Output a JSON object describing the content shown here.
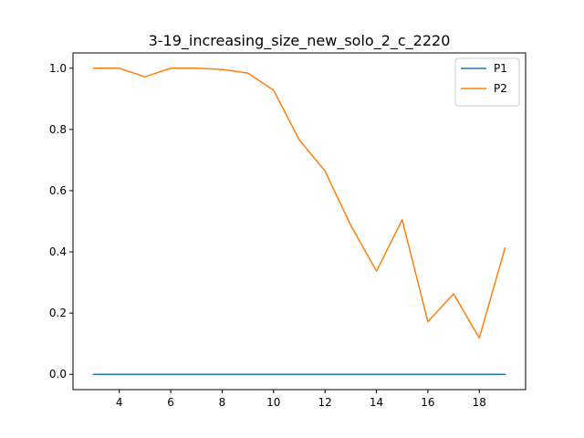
{
  "chart_data": {
    "type": "line",
    "title": "3-19_increasing_size_new_solo_2_c_2220",
    "xlabel": "",
    "ylabel": "",
    "x": [
      3,
      4,
      5,
      6,
      7,
      8,
      9,
      10,
      11,
      12,
      13,
      14,
      15,
      16,
      17,
      18,
      19
    ],
    "series": [
      {
        "name": "P1",
        "color": "#1f77b4",
        "values": [
          0,
          0,
          0,
          0,
          0,
          0,
          0,
          0,
          0,
          0,
          0,
          0,
          0,
          0,
          0,
          0,
          0
        ]
      },
      {
        "name": "P2",
        "color": "#ff7f0e",
        "values": [
          1.0,
          1.0,
          0.972,
          1.0,
          1.0,
          0.996,
          0.984,
          0.928,
          0.766,
          0.664,
          0.487,
          0.337,
          0.505,
          0.172,
          0.263,
          0.119,
          0.413
        ]
      }
    ],
    "xlim": [
      2.2,
      19.8
    ],
    "ylim": [
      -0.05,
      1.05
    ],
    "xticks": [
      4,
      6,
      8,
      10,
      12,
      14,
      16,
      18
    ],
    "yticks": [
      0.0,
      0.2,
      0.4,
      0.6,
      0.8,
      1.0
    ],
    "ytick_labels": [
      "0.0",
      "0.2",
      "0.4",
      "0.6",
      "0.8",
      "1.0"
    ],
    "grid": false,
    "legend_position": "top-right"
  }
}
